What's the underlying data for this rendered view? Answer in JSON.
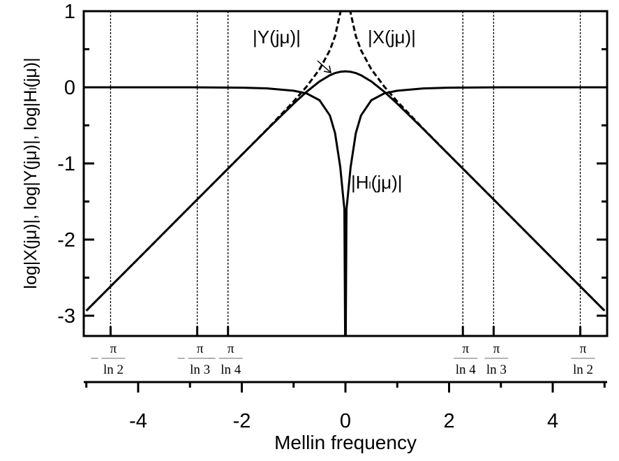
{
  "chart_data": {
    "type": "line",
    "title": "",
    "xlabel": "Mellin frequency",
    "ylabel": "log|X(jμ)|, log|Y(jμ)|, log|H",
    "ylabel_sub": "l",
    "ylabel_tail": "(jμ)|",
    "xlim": [
      -5.05,
      5.05
    ],
    "ylim": [
      -3.24,
      1
    ],
    "xticks": [
      -4,
      -2,
      0,
      2,
      4
    ],
    "xtick_labels": [
      "-4",
      "-2",
      "0",
      "2",
      "4"
    ],
    "yticks": [
      1,
      0,
      -1,
      -2,
      -3
    ],
    "ytick_labels": [
      "1",
      "0",
      "-1",
      "-2",
      "-3"
    ],
    "grid": false,
    "series": [
      {
        "name": "|X(jμ)|",
        "style": "dashed",
        "x": [
          -5,
          -4,
          -3,
          -2,
          -1.5,
          -1,
          -0.75,
          -0.5,
          -0.3,
          -0.2,
          -0.1,
          -0.05,
          0.05,
          0.1,
          0.2,
          0.3,
          0.5,
          0.75,
          1,
          1.5,
          2,
          3,
          4,
          5
        ],
        "y": [
          -2.934,
          -2.252,
          -1.569,
          -0.886,
          -0.542,
          -0.186,
          0.009,
          0.237,
          0.487,
          0.672,
          0.978,
          1.28,
          1.28,
          0.978,
          0.672,
          0.487,
          0.237,
          0.009,
          -0.186,
          -0.542,
          -0.886,
          -1.569,
          -2.252,
          -2.934
        ]
      },
      {
        "name": "|Y(jμ)|",
        "style": "solid",
        "x": [
          -5,
          -4,
          -3,
          -2,
          -1.5,
          -1,
          -0.75,
          -0.5,
          -0.3,
          -0.2,
          -0.1,
          0,
          0.1,
          0.2,
          0.3,
          0.5,
          0.75,
          1,
          1.5,
          2,
          3,
          4,
          5
        ],
        "y": [
          -2.934,
          -2.252,
          -1.569,
          -0.887,
          -0.547,
          -0.215,
          -0.059,
          0.077,
          0.159,
          0.187,
          0.204,
          0.21,
          0.204,
          0.187,
          0.159,
          0.077,
          -0.059,
          -0.215,
          -0.547,
          -0.887,
          -1.569,
          -2.252,
          -2.934
        ]
      },
      {
        "name": "|H_l(jμ)|",
        "style": "solid",
        "x": [
          -5,
          -4,
          -3,
          -2,
          -1.5,
          -1,
          -0.75,
          -0.5,
          -0.3,
          -0.2,
          -0.1,
          -0.05,
          -0.02,
          -0.005,
          0,
          0.005,
          0.02,
          0.05,
          0.1,
          0.2,
          0.3,
          0.5,
          0.75,
          1,
          1.5,
          2,
          3,
          4,
          5
        ],
        "y": [
          0,
          0,
          0,
          -0.005,
          -0.015,
          -0.045,
          -0.08,
          -0.17,
          -0.37,
          -0.6,
          -1.05,
          -1.4,
          -1.6,
          -3.3,
          -3.3,
          -3.3,
          -1.6,
          -1.4,
          -1.05,
          -0.6,
          -0.37,
          -0.17,
          -0.08,
          -0.045,
          -0.015,
          -0.005,
          0,
          0,
          0
        ]
      }
    ],
    "annotations": {
      "y_label": "|Y(jμ)|",
      "x_label": "|X(jμ)|",
      "h_label": "|H",
      "h_sub": "l",
      "h_tail": "(jμ)|"
    },
    "reference_lines": [
      {
        "x": -4.532,
        "sign": "−",
        "num": "π",
        "den": "ln 2"
      },
      {
        "x": -2.86,
        "sign": "−",
        "num": "π",
        "den": "ln 3"
      },
      {
        "x": -2.266,
        "sign": "−",
        "num": "π",
        "den": "ln 4"
      },
      {
        "x": 2.266,
        "sign": "",
        "num": "π",
        "den": "ln 4"
      },
      {
        "x": 2.86,
        "sign": "",
        "num": "π",
        "den": "ln 3"
      },
      {
        "x": 4.532,
        "sign": "",
        "num": "π",
        "den": "ln 2"
      }
    ]
  }
}
